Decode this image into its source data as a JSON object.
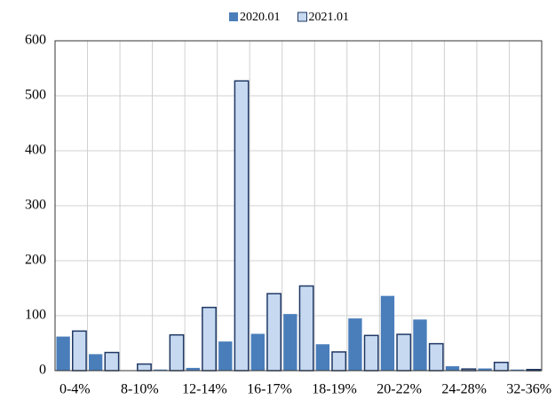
{
  "chart_data": {
    "type": "bar",
    "categories": [
      "0-4%",
      null,
      "8-10%",
      null,
      "12-14%",
      null,
      "16-17%",
      null,
      "18-19%",
      null,
      "20-22%",
      null,
      "24-28%",
      null,
      "32-36%"
    ],
    "series": [
      {
        "name": "2020.01",
        "color": "#4a7ebb",
        "values": [
          62,
          30,
          0,
          2,
          5,
          53,
          67,
          103,
          48,
          95,
          136,
          93,
          8,
          4,
          2
        ]
      },
      {
        "name": "2021.01",
        "color": "#c6d9f1",
        "edgecolor": "#1f3864",
        "values": [
          72,
          33,
          12,
          65,
          115,
          527,
          140,
          154,
          34,
          64,
          66,
          49,
          3,
          15,
          2
        ]
      }
    ],
    "ylim": [
      0,
      600
    ],
    "yticks": [
      0,
      100,
      200,
      300,
      400,
      500,
      600
    ],
    "grid": true,
    "legend": "top"
  }
}
